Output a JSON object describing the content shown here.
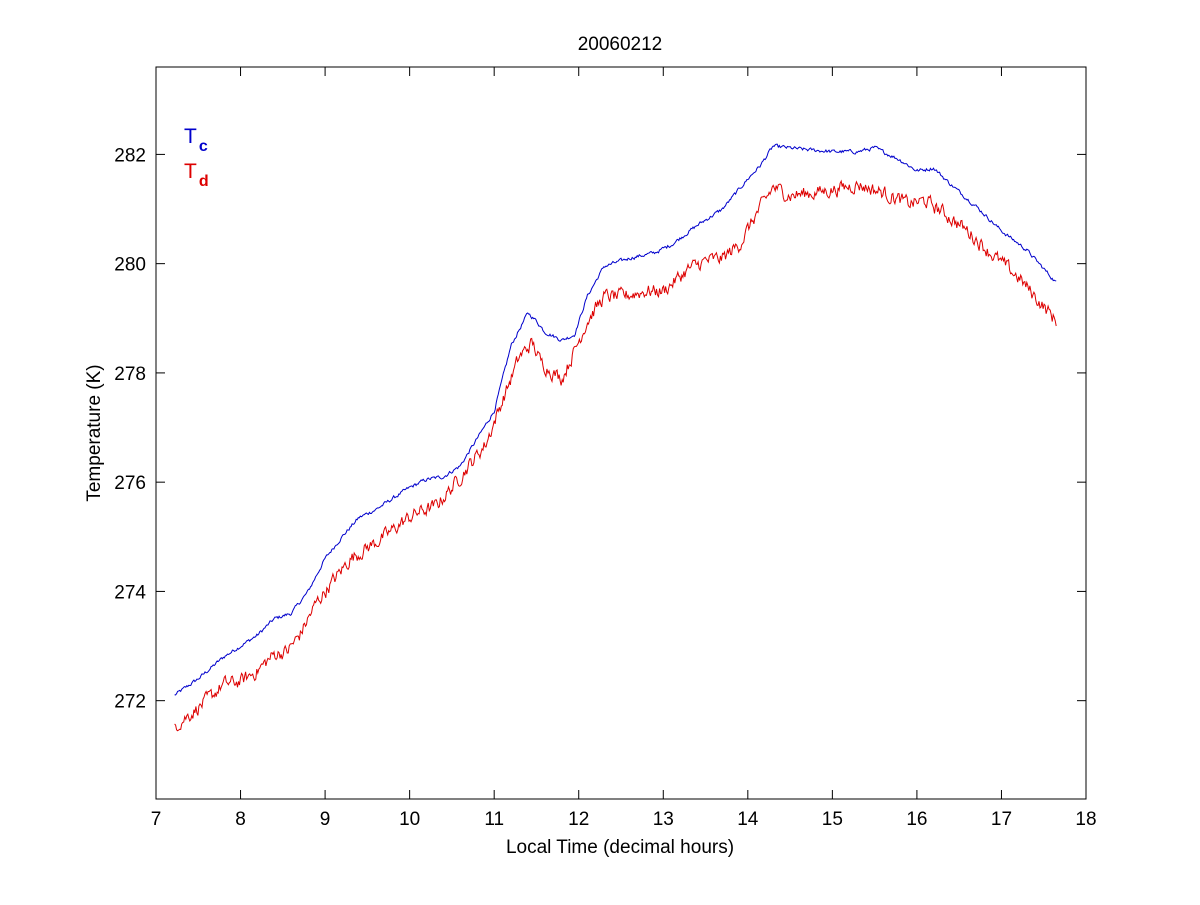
{
  "chart_data": {
    "type": "line",
    "title": "20060212",
    "xlabel": "Local Time (decimal hours)",
    "ylabel": "Temperature (K)",
    "xlim": [
      7,
      18
    ],
    "ylim": [
      270.2,
      283.6
    ],
    "xticks": [
      7,
      8,
      9,
      10,
      11,
      12,
      13,
      14,
      15,
      16,
      17,
      18
    ],
    "yticks": [
      272,
      274,
      276,
      278,
      280,
      282
    ],
    "grid": false,
    "legend_position": "top-left",
    "series": [
      {
        "name": "T",
        "subscript": "c",
        "color": "#0000cc",
        "noise": 0.03,
        "x": [
          7.22,
          7.5,
          7.8,
          8.0,
          8.2,
          8.4,
          8.6,
          8.8,
          9.0,
          9.2,
          9.4,
          9.6,
          9.8,
          10.0,
          10.2,
          10.4,
          10.6,
          10.8,
          11.0,
          11.2,
          11.4,
          11.5,
          11.6,
          11.8,
          11.95,
          12.1,
          12.3,
          12.6,
          12.9,
          13.1,
          13.4,
          13.7,
          14.0,
          14.15,
          14.3,
          14.6,
          15.0,
          15.3,
          15.5,
          15.8,
          16.0,
          16.2,
          16.4,
          16.7,
          17.0,
          17.3,
          17.65
        ],
        "y": [
          272.1,
          272.4,
          272.8,
          273.0,
          273.2,
          273.5,
          273.6,
          274.0,
          274.6,
          275.0,
          275.35,
          275.5,
          275.7,
          275.9,
          276.05,
          276.1,
          276.3,
          276.8,
          277.3,
          278.5,
          279.1,
          278.95,
          278.75,
          278.6,
          278.7,
          279.4,
          279.95,
          280.1,
          280.2,
          280.35,
          280.7,
          281.0,
          281.55,
          281.8,
          282.15,
          282.1,
          282.05,
          282.05,
          282.12,
          281.9,
          281.7,
          281.75,
          281.45,
          281.05,
          280.6,
          280.25,
          279.65
        ]
      },
      {
        "name": "T",
        "subscript": "d",
        "color": "#dd0000",
        "noise": 0.11,
        "x": [
          7.22,
          7.4,
          7.6,
          7.8,
          8.0,
          8.2,
          8.4,
          8.55,
          8.7,
          8.9,
          9.1,
          9.3,
          9.5,
          9.7,
          9.9,
          10.1,
          10.3,
          10.5,
          10.7,
          10.9,
          11.1,
          11.3,
          11.45,
          11.55,
          11.7,
          11.8,
          11.95,
          12.1,
          12.3,
          12.5,
          12.8,
          13.0,
          13.3,
          13.5,
          13.7,
          13.9,
          14.1,
          14.3,
          14.5,
          14.8,
          15.0,
          15.3,
          15.6,
          15.9,
          16.1,
          16.3,
          16.6,
          16.9,
          17.2,
          17.45,
          17.65
        ],
        "y": [
          271.55,
          271.75,
          272.0,
          272.3,
          272.35,
          272.55,
          272.85,
          272.9,
          273.2,
          273.8,
          274.2,
          274.6,
          274.8,
          275.0,
          275.25,
          275.45,
          275.55,
          275.9,
          276.3,
          276.7,
          277.5,
          278.3,
          278.55,
          278.2,
          278.0,
          277.9,
          278.4,
          278.95,
          279.4,
          279.4,
          279.5,
          279.5,
          279.9,
          280.05,
          280.1,
          280.35,
          280.9,
          281.4,
          281.25,
          281.3,
          281.35,
          281.45,
          281.3,
          281.1,
          281.15,
          280.95,
          280.6,
          280.15,
          279.75,
          279.3,
          278.95
        ]
      }
    ]
  }
}
